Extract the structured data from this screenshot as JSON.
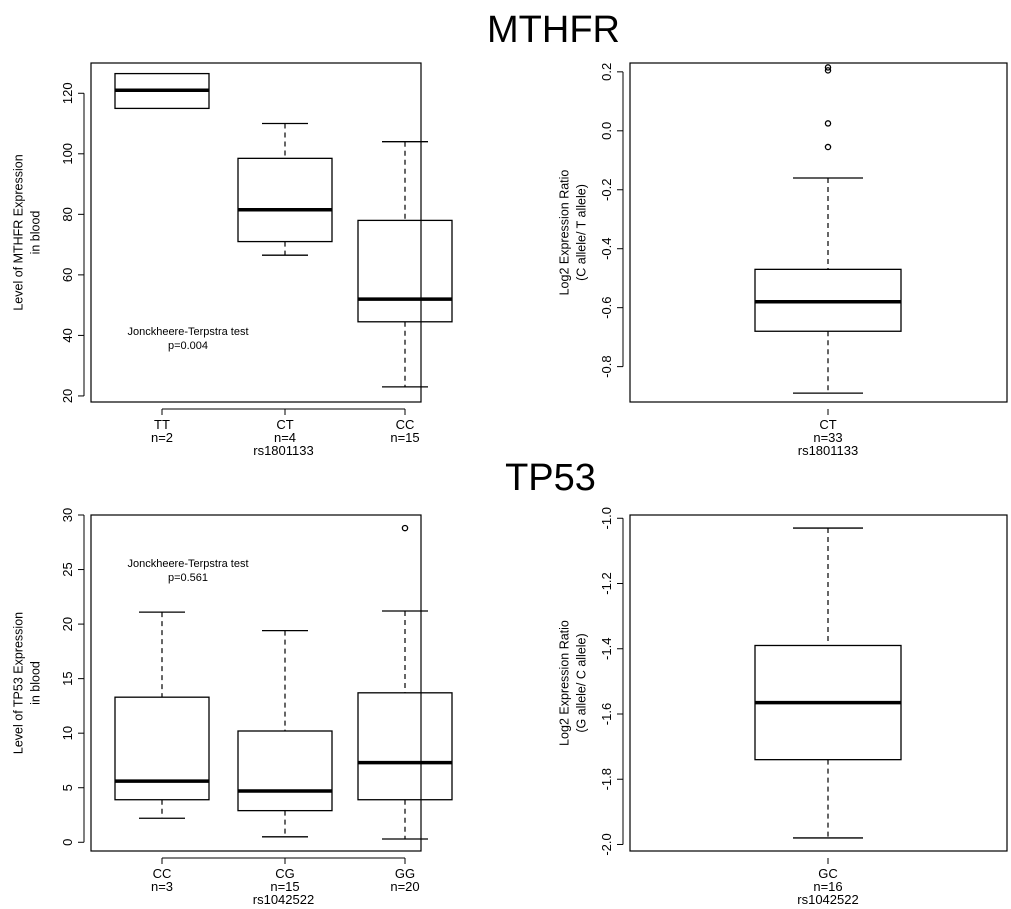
{
  "sections": [
    {
      "title": "MTHFR"
    },
    {
      "title": "TP53"
    }
  ],
  "chart_data": [
    {
      "type": "box",
      "ylabel": [
        "Level of MTHFR Expression",
        "in blood"
      ],
      "xlabel": "rs1801133",
      "ylim": [
        18,
        130
      ],
      "yticks": [
        20,
        40,
        60,
        80,
        100,
        120
      ],
      "annotation": [
        "Jonckheere-Terpstra test",
        "p=0.004"
      ],
      "groups": [
        {
          "label": "TT",
          "n": "n=2",
          "min": 115,
          "q1": 115,
          "median": 121,
          "q3": 126.5,
          "max": 126.5,
          "outliers": []
        },
        {
          "label": "CT",
          "n": "n=4",
          "min": 66.5,
          "q1": 71,
          "median": 81.5,
          "q3": 98.5,
          "max": 110,
          "outliers": []
        },
        {
          "label": "CC",
          "n": "n=15",
          "min": 23,
          "q1": 44.5,
          "median": 52,
          "q3": 78,
          "max": 104,
          "outliers": []
        }
      ]
    },
    {
      "type": "box",
      "ylabel": [
        "Log2 Expression Ratio",
        "(C allele/ T allele)"
      ],
      "xlabel": "rs1801133",
      "ylim": [
        -0.92,
        0.23
      ],
      "yticks": [
        -0.8,
        -0.6,
        -0.4,
        -0.2,
        0.0,
        0.2
      ],
      "yticklabels": [
        "-0.8",
        "-0.6",
        "-0.4",
        "-0.2",
        "0.0",
        "0.2"
      ],
      "groups": [
        {
          "label": "CT",
          "n": "n=33",
          "min": -0.89,
          "q1": -0.68,
          "median": -0.58,
          "q3": -0.47,
          "max": -0.16,
          "outliers": [
            0.205,
            0.215,
            0.025,
            -0.055
          ]
        }
      ]
    },
    {
      "type": "box",
      "ylabel": [
        "Level of TP53 Expression",
        "in blood"
      ],
      "xlabel": "rs1042522",
      "ylim": [
        -0.8,
        30
      ],
      "yticks": [
        0,
        5,
        10,
        15,
        20,
        25,
        30
      ],
      "annotation": [
        "Jonckheere-Terpstra test",
        "p=0.561"
      ],
      "groups": [
        {
          "label": "CC",
          "n": "n=3",
          "min": 2.2,
          "q1": 3.9,
          "median": 5.6,
          "q3": 13.3,
          "max": 21.1,
          "outliers": []
        },
        {
          "label": "CG",
          "n": "n=15",
          "min": 0.5,
          "q1": 2.9,
          "median": 4.7,
          "q3": 10.2,
          "max": 19.4,
          "outliers": []
        },
        {
          "label": "GG",
          "n": "n=20",
          "min": 0.3,
          "q1": 3.9,
          "median": 7.3,
          "q3": 13.7,
          "max": 21.2,
          "outliers": [
            28.8
          ]
        }
      ]
    },
    {
      "type": "box",
      "ylabel": [
        "Log2 Expression Ratio",
        "(G allele/ C allele)"
      ],
      "xlabel": "rs1042522",
      "ylim": [
        -2.02,
        -0.99
      ],
      "yticks": [
        -2.0,
        -1.8,
        -1.6,
        -1.4,
        -1.2,
        -1.0
      ],
      "yticklabels": [
        "-2.0",
        "-1.8",
        "-1.6",
        "-1.4",
        "-1.2",
        "-1.0"
      ],
      "groups": [
        {
          "label": "GC",
          "n": "n=16",
          "min": -1.98,
          "q1": -1.74,
          "median": -1.565,
          "q3": -1.39,
          "max": -1.03,
          "outliers": []
        }
      ]
    }
  ]
}
